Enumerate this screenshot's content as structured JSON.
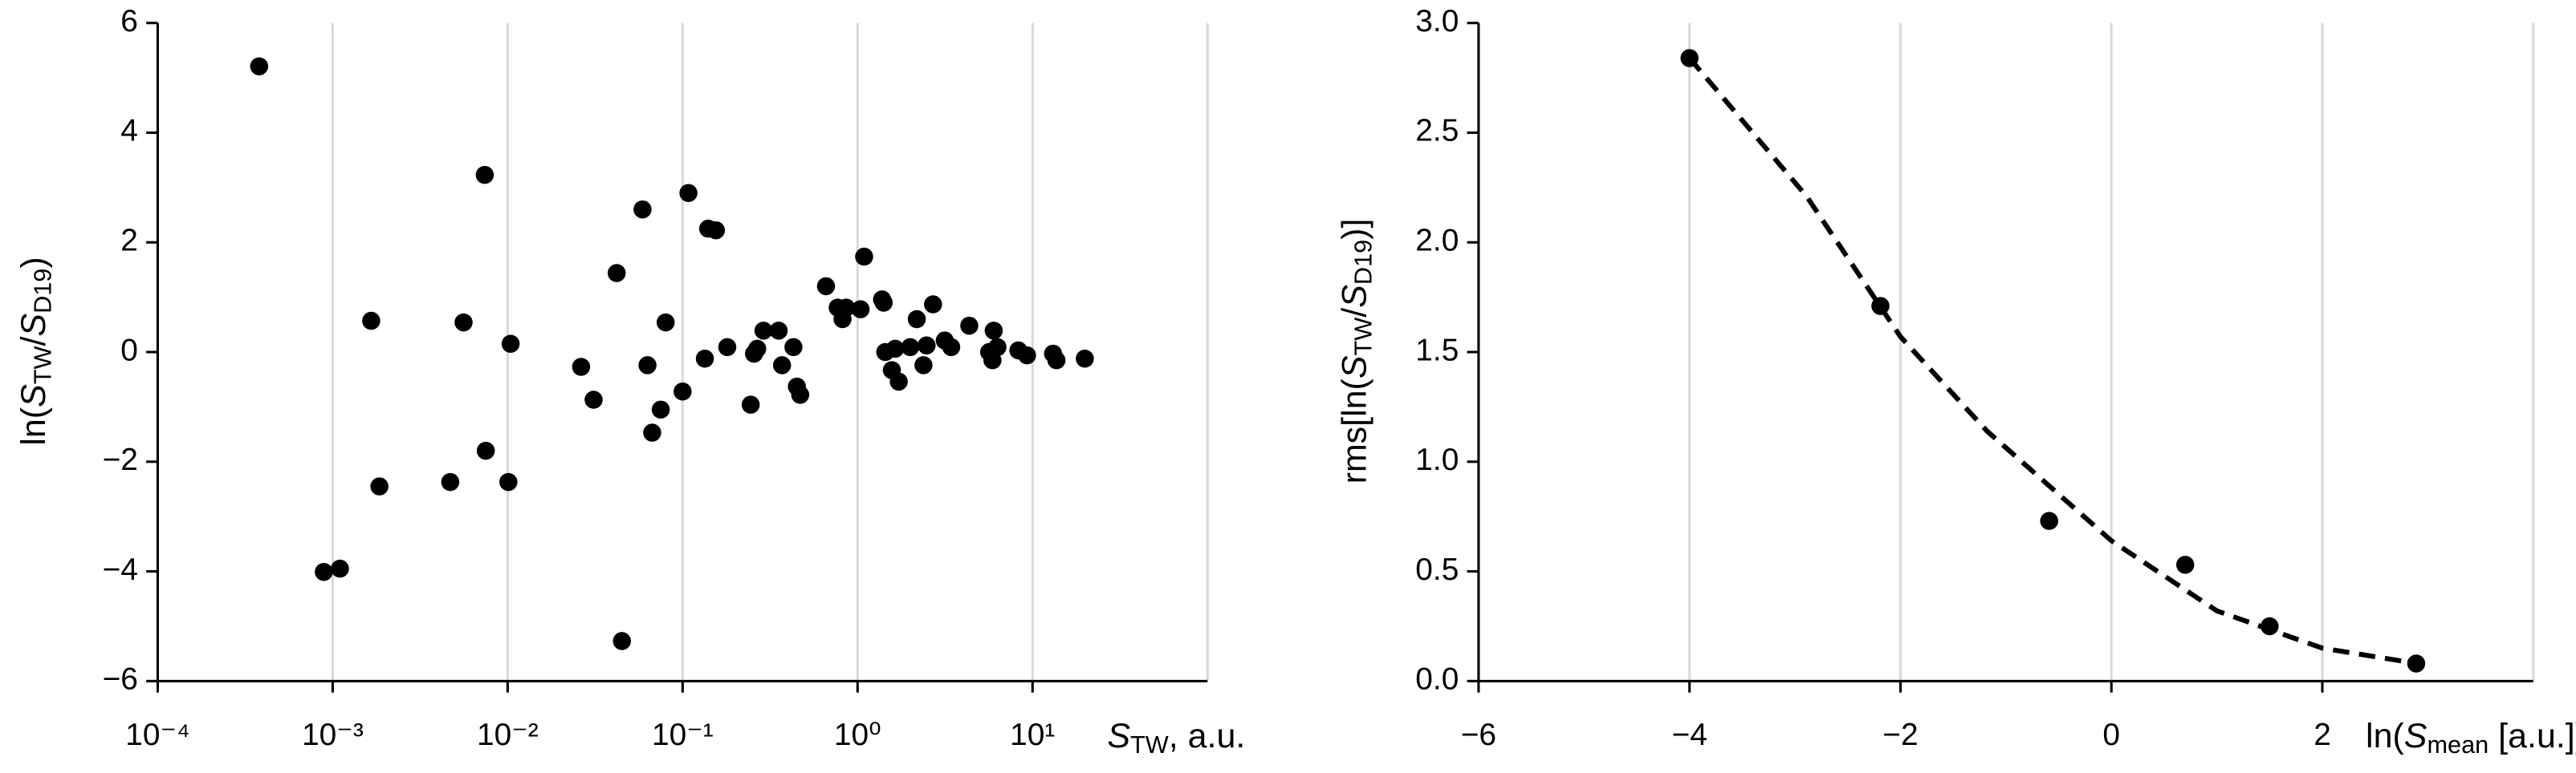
{
  "chart_data": [
    {
      "type": "scatter",
      "xlabel": [
        "S",
        "TW",
        ", a.u."
      ],
      "ylabel": [
        "ln(",
        "S",
        "TW",
        "/",
        "S",
        "D19",
        ")"
      ],
      "color": "#000000",
      "xlog": true,
      "grid": "x",
      "xlim": [
        0.0001,
        100
      ],
      "xticks": [
        {
          "value": 0.0001,
          "label": "10⁻⁴"
        },
        {
          "value": 0.001,
          "label": "10⁻³"
        },
        {
          "value": 0.01,
          "label": "10⁻²"
        },
        {
          "value": 0.1,
          "label": "10⁻¹"
        },
        {
          "value": 1,
          "label": "10⁰"
        },
        {
          "value": 10,
          "label": "10¹"
        }
      ],
      "ylim": [
        -6,
        6
      ],
      "yticks": [
        {
          "value": -6,
          "label": "−6"
        },
        {
          "value": -4,
          "label": "−4"
        },
        {
          "value": -2,
          "label": "−2"
        },
        0,
        2,
        4,
        6
      ],
      "x": [
        0.00038,
        0.00089,
        0.0011,
        0.00166,
        0.00185,
        0.0047,
        0.0056,
        0.0074,
        0.0075,
        0.0101,
        0.0104,
        0.0263,
        0.031,
        0.042,
        0.045,
        0.059,
        0.063,
        0.067,
        0.075,
        0.08,
        0.1,
        0.108,
        0.134,
        0.14,
        0.155,
        0.18,
        0.245,
        0.256,
        0.267,
        0.29,
        0.354,
        0.37,
        0.43,
        0.45,
        0.47,
        0.66,
        0.77,
        0.82,
        0.86,
        1.04,
        1.09,
        1.38,
        1.41,
        1.44,
        1.57,
        1.64,
        1.72,
        2.0,
        2.18,
        2.38,
        2.48,
        2.7,
        3.15,
        3.43,
        4.35,
        5.65,
        5.9,
        6.0,
        6.3,
        8.3,
        9.3,
        13.1,
        13.7,
        19.9
      ],
      "y": [
        5.21,
        -4.01,
        -3.95,
        0.57,
        -2.45,
        -2.37,
        0.54,
        3.23,
        -1.8,
        -2.37,
        0.15,
        -0.27,
        -0.87,
        1.44,
        -5.27,
        2.6,
        -0.24,
        -1.47,
        -1.05,
        0.54,
        -0.72,
        2.9,
        -0.12,
        2.25,
        2.22,
        0.09,
        -0.96,
        -0.03,
        0.06,
        0.39,
        0.39,
        -0.24,
        0.09,
        -0.63,
        -0.78,
        1.2,
        0.81,
        0.6,
        0.81,
        0.78,
        1.74,
        0.96,
        0.9,
        0.0,
        -0.33,
        0.06,
        -0.54,
        0.09,
        0.6,
        -0.24,
        0.12,
        0.87,
        0.21,
        0.09,
        0.48,
        0.0,
        -0.15,
        0.39,
        0.09,
        0.03,
        -0.06,
        -0.03,
        -0.15,
        -0.12
      ]
    },
    {
      "type": "scatter",
      "xlabel": [
        "ln(",
        "S",
        "mean",
        " [a.u.])"
      ],
      "ylabel": [
        "rms[ln(",
        "S",
        "TW",
        "/",
        "S",
        "D19",
        ")]"
      ],
      "color": "#000000",
      "grid": "x",
      "xlim": [
        -6,
        4
      ],
      "xticks": [
        {
          "value": -6,
          "label": "−6"
        },
        {
          "value": -4,
          "label": "−4"
        },
        {
          "value": -2,
          "label": "−2"
        },
        0,
        2
      ],
      "ylim": [
        0,
        3
      ],
      "yticks": [
        {
          "value": 0,
          "label": "0.0"
        },
        {
          "value": 0.5,
          "label": "0.5"
        },
        {
          "value": 1,
          "label": "1.0"
        },
        {
          "value": 1.5,
          "label": "1.5"
        },
        {
          "value": 2,
          "label": "2.0"
        },
        {
          "value": 2.5,
          "label": "2.5"
        },
        {
          "value": 3,
          "label": "3.0"
        }
      ],
      "x": [
        -4.0,
        -2.19,
        -0.59,
        0.7,
        1.5,
        2.89
      ],
      "y": [
        2.84,
        1.71,
        0.73,
        0.53,
        0.25,
        0.08
      ],
      "fit": {
        "style": "dashed",
        "color": "#000000",
        "x": [
          -4.0,
          -2.89,
          -2.0,
          -1.18,
          0.0,
          1.0,
          2.0,
          2.9
        ],
        "y": [
          2.84,
          2.21,
          1.57,
          1.14,
          0.64,
          0.32,
          0.15,
          0.08
        ]
      }
    }
  ]
}
